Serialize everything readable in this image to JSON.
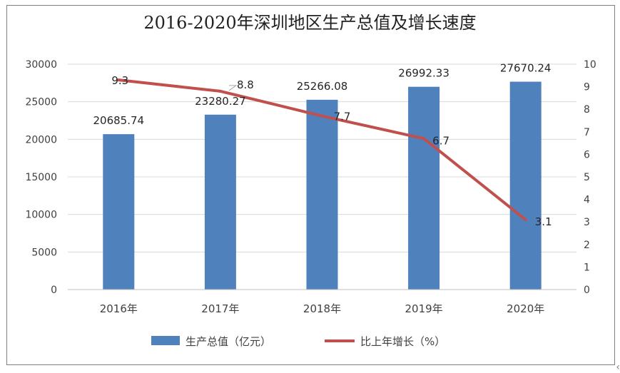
{
  "chart_data": {
    "type": "bar",
    "title": "2016-2020年深圳地区生产总值及增长速度",
    "categories": [
      "2016年",
      "2017年",
      "2018年",
      "2019年",
      "2020年"
    ],
    "series": [
      {
        "name": "生产总值（亿元）",
        "type": "bar",
        "axis": "left",
        "color": "#4f81bd",
        "values": [
          20685.74,
          23280.27,
          25266.08,
          26992.33,
          27670.24
        ],
        "labels": [
          "20685.74",
          "23280.27",
          "25266.08",
          "26992.33",
          "27670.24"
        ]
      },
      {
        "name": "比上年增长（%）",
        "type": "line",
        "axis": "right",
        "color": "#c0504d",
        "values": [
          9.3,
          8.8,
          7.7,
          6.7,
          3.1
        ],
        "labels": [
          "9.3",
          "8.8",
          "7.7",
          "6.7",
          "3.1"
        ]
      }
    ],
    "y_left": {
      "ylim": [
        0,
        30000
      ],
      "ticks": [
        "0",
        "5000",
        "10000",
        "15000",
        "20000",
        "25000",
        "30000"
      ]
    },
    "y_right": {
      "ylim": [
        0,
        10
      ],
      "ticks": [
        "0",
        "1",
        "2",
        "3",
        "4",
        "5",
        "6",
        "7",
        "8",
        "9",
        "10"
      ]
    },
    "grid": true,
    "legend_position": "bottom"
  },
  "corner_mark": "‹"
}
